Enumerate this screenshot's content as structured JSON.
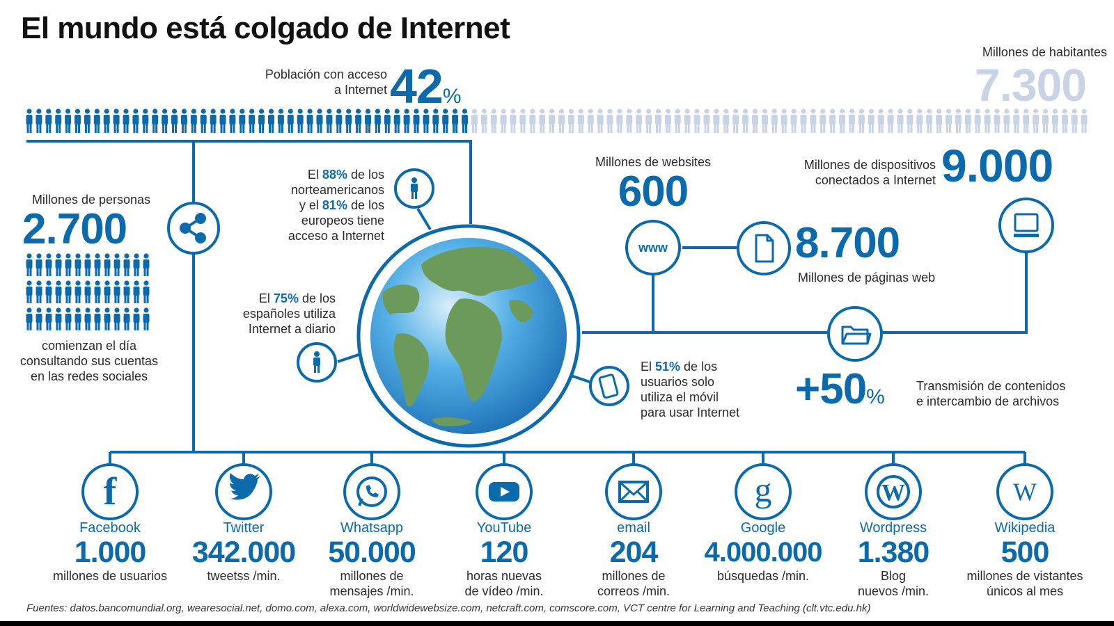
{
  "title": "El mundo está colgado de Internet",
  "population": {
    "access_label_1": "Población con acceso",
    "access_label_2": "a Internet",
    "access_value": "42",
    "access_unit": "%",
    "access_fraction": 0.42,
    "inhabitants_label": "Millones de habitantes",
    "inhabitants_value": "7.300"
  },
  "social": {
    "label": "Millones de personas",
    "value": "2.700",
    "desc_1": "comienzan el día",
    "desc_2": "consultando sus cuentas",
    "desc_3": "en las redes sociales",
    "icon": "share-icon"
  },
  "americans": {
    "l1_a": "El ",
    "l1_b": "88%",
    "l1_c": " de los",
    "l2": "norteamericanos",
    "l3_a": "y el ",
    "l3_b": "81%",
    "l3_c": " de los",
    "l4": "europeos tiene",
    "l5": "acceso a Internet"
  },
  "spaniards": {
    "l1_a": "El ",
    "l1_b": "75%",
    "l1_c": " de los",
    "l2": "españoles utiliza",
    "l3": "Internet a diario"
  },
  "mobile": {
    "l1_a": "El ",
    "l1_b": "51%",
    "l1_c": " de los",
    "l2": "usuarios solo",
    "l3": "utiliza el móvil",
    "l4": "para usar Internet"
  },
  "websites": {
    "label": "Millones de websites",
    "value": "600",
    "icon_text": "www"
  },
  "pages": {
    "value": "8.700",
    "label": "Millones de páginas web"
  },
  "devices": {
    "label_1": "Millones de dispositivos",
    "label_2": "conectados a Internet",
    "value": "9.000"
  },
  "transfer": {
    "value": "+50",
    "unit": "%",
    "label_1": "Transmisión de contenidos",
    "label_2": "e intercambio de archivos"
  },
  "services": [
    {
      "name": "Facebook",
      "value": "1.000",
      "desc_1": "millones de usuarios",
      "desc_2": "",
      "icon": "facebook-icon",
      "glyph": "f"
    },
    {
      "name": "Twitter",
      "value": "342.000",
      "desc_1": "tweetss /min.",
      "desc_2": "",
      "icon": "twitter-icon",
      "glyph": ""
    },
    {
      "name": "Whatsapp",
      "value": "50.000",
      "desc_1": "millones de",
      "desc_2": "mensajes /min.",
      "icon": "whatsapp-icon",
      "glyph": ""
    },
    {
      "name": "YouTube",
      "value": "120",
      "desc_1": "horas nuevas",
      "desc_2": "de vídeo /min.",
      "icon": "youtube-icon",
      "glyph": ""
    },
    {
      "name": "email",
      "value": "204",
      "desc_1": "millones de",
      "desc_2": "correos /min.",
      "icon": "email-icon",
      "glyph": ""
    },
    {
      "name": "Google",
      "value": "4.000.000",
      "desc_1": "búsquedas /min.",
      "desc_2": "",
      "icon": "google-icon",
      "glyph": "g"
    },
    {
      "name": "Wordpress",
      "value": "1.380",
      "desc_1": "Blog",
      "desc_2": "nuevos /min.",
      "icon": "wordpress-icon",
      "glyph": "W"
    },
    {
      "name": "Wikipedia",
      "value": "500",
      "desc_1": "millones de vistantes",
      "desc_2": "únicos al mes",
      "icon": "wikipedia-icon",
      "glyph": "W"
    }
  ],
  "source": "Fuentes: datos.bancomundial.org, wearesocial.net, domo.com, alexa.com, worldwidewebsize.com, netcraft.com, comscore.com, VCT centre for Learning and Teaching (clt.vtc.edu.hk)",
  "colors": {
    "accent": "#0a6aab",
    "muted": "#c8d3e6",
    "land": "#6b9a5b",
    "ocean": "#2f8fd0"
  }
}
